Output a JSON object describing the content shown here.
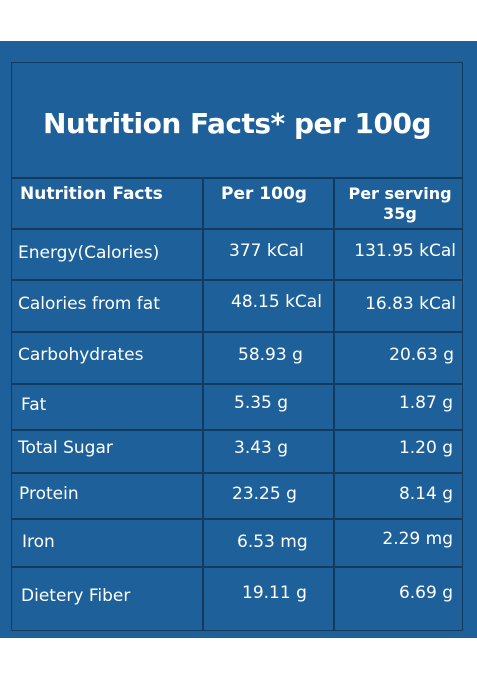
{
  "title": "Nutrition Facts* per 100g",
  "table": {
    "headers": {
      "name": "Nutrition Facts",
      "per100": "Per 100g",
      "per_serving_line1": "Per serving",
      "per_serving_line2": "35g"
    },
    "rows": [
      {
        "name": "Energy(Calories)",
        "per100": "377 kCal",
        "per_serving": "131.95 kCal"
      },
      {
        "name": "Calories from fat",
        "per100": "48.15 kCal",
        "per_serving": "16.83 kCal"
      },
      {
        "name": "Carbohydrates",
        "per100": "58.93 g",
        "per_serving": "20.63 g"
      },
      {
        "name": "Fat",
        "per100": "5.35 g",
        "per_serving": "1.87 g"
      },
      {
        "name": "Total Sugar",
        "per100": "3.43 g",
        "per_serving": "1.20 g"
      },
      {
        "name": "Protein",
        "per100": "23.25 g",
        "per_serving": "8.14 g"
      },
      {
        "name": "Iron",
        "per100": "6.53 mg",
        "per_serving": "2.29 mg"
      },
      {
        "name": "Dietery Fiber",
        "per100": "19.11 g",
        "per_serving": "6.69 g"
      }
    ]
  },
  "colors": {
    "background": "#1e619a",
    "border": "#153b5c",
    "text": "#ffffff"
  }
}
